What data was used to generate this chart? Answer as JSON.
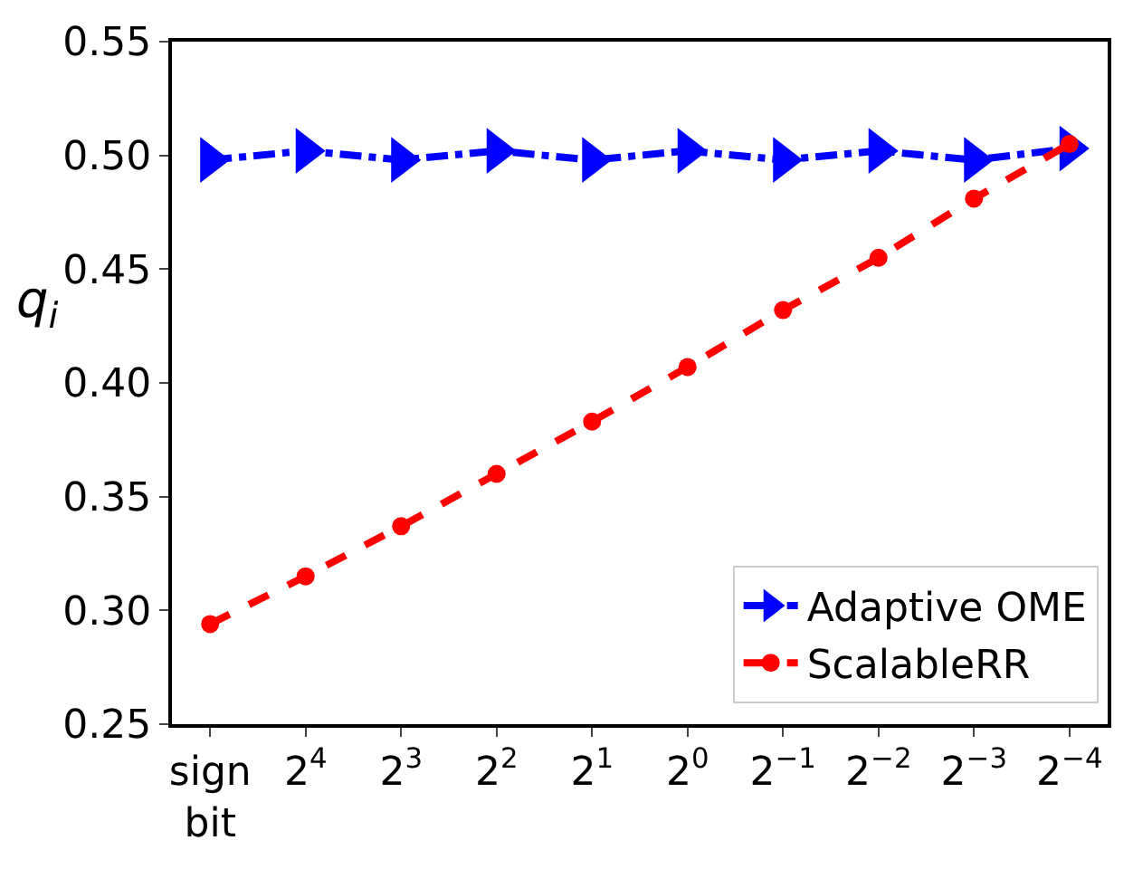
{
  "chart_data": {
    "type": "line",
    "ylabel": "q$_{i}$",
    "categories": [
      "sign bit",
      "2$^{4}$",
      "2$^{3}$",
      "2$^{2}$",
      "2$^{1}$",
      "2$^{0}$",
      "2$^{−1}$",
      "2$^{−2}$",
      "2$^{−3}$",
      "2$^{−4}$"
    ],
    "series": [
      {
        "name": "Adaptive OME",
        "color": "#0000ff",
        "marker": "triangle",
        "line_style": "dashdot",
        "values": [
          0.498,
          0.502,
          0.498,
          0.502,
          0.498,
          0.502,
          0.498,
          0.502,
          0.498,
          0.503
        ]
      },
      {
        "name": "ScalableRR",
        "color": "#ff0000",
        "marker": "circle",
        "line_style": "dashed",
        "values": [
          0.294,
          0.315,
          0.337,
          0.36,
          0.383,
          0.407,
          0.432,
          0.455,
          0.481,
          0.505
        ]
      }
    ],
    "ylim": [
      0.25,
      0.55
    ],
    "yticks": [
      {
        "value": 0.25,
        "label": "0.25"
      },
      {
        "value": 0.3,
        "label": "0.30"
      },
      {
        "value": 0.35,
        "label": "0.35"
      },
      {
        "value": 0.4,
        "label": "0.40"
      },
      {
        "value": 0.45,
        "label": "0.45"
      },
      {
        "value": 0.5,
        "label": "0.50"
      },
      {
        "value": 0.55,
        "label": "0.55"
      }
    ],
    "legend": "bottom right"
  }
}
